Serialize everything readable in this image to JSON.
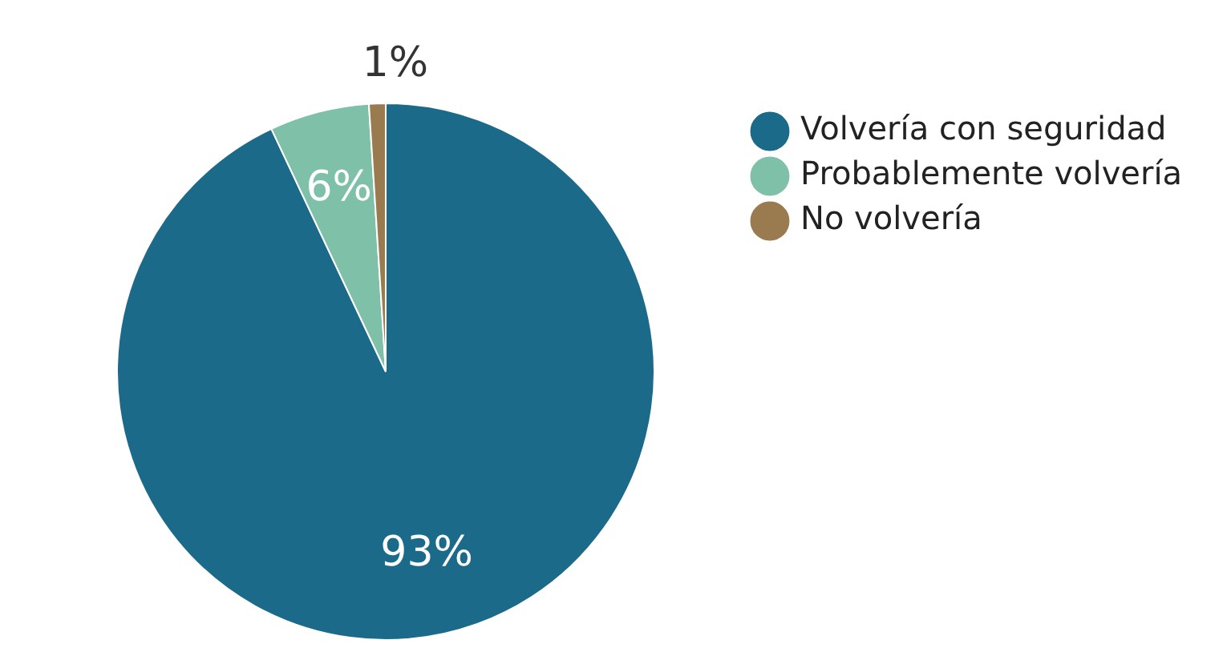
{
  "chart_data": {
    "type": "pie",
    "categories": [
      "Volvería con seguridad",
      "Probablemente volvería",
      "No volvería"
    ],
    "values": [
      93,
      6,
      1
    ],
    "colors": [
      "#1b6a8a",
      "#7fc1a8",
      "#9a7b4f"
    ],
    "value_labels": [
      "93%",
      "6%",
      "1%"
    ],
    "legend": "top right"
  }
}
